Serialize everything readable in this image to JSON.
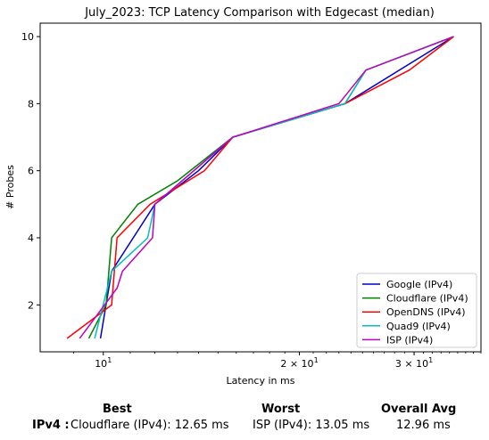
{
  "chart_data": {
    "type": "line",
    "title": "July_2023: TCP Latency Comparison with Edgecast (median)",
    "xlabel": "Latency in ms",
    "ylabel": "# Probes",
    "xscale": "log",
    "xlim": [
      8.0,
      38.0
    ],
    "ylim": [
      0.6,
      10.4
    ],
    "x_ticks": [
      {
        "value": 10,
        "label": "10",
        "exp": "1"
      },
      {
        "value": 20,
        "label": "2 × 10",
        "exp": "1"
      },
      {
        "value": 30,
        "label": "3 × 10",
        "exp": "1"
      }
    ],
    "y_ticks": [
      2,
      4,
      6,
      8,
      10
    ],
    "grid": false,
    "legend_position": "lower-right",
    "series": [
      {
        "name": "Google (IPv4)",
        "color": "#0000cc",
        "x": [
          9.9,
          10.3,
          12.0,
          14.0,
          15.8,
          23.5,
          34.5
        ],
        "y": [
          1,
          3,
          5,
          6,
          7,
          8,
          10
        ]
      },
      {
        "name": "Cloudflare (IPv4)",
        "color": "#008000",
        "x": [
          9.5,
          10.1,
          10.3,
          11.3,
          13.0,
          15.8,
          23.5,
          25.3,
          34.5
        ],
        "y": [
          1,
          2,
          4,
          5,
          5.7,
          7,
          8,
          9,
          10
        ]
      },
      {
        "name": "OpenDNS (IPv4)",
        "color": "#ff0000",
        "x": [
          8.8,
          10.3,
          10.5,
          11.8,
          14.3,
          15.8,
          23.5,
          29.5,
          34.5
        ],
        "y": [
          1,
          2,
          4,
          5,
          6,
          7,
          8,
          9,
          10
        ]
      },
      {
        "name": "Quad9 (IPv4)",
        "color": "#00c0c0",
        "x": [
          9.7,
          10.3,
          11.7,
          12.0,
          15.8,
          23.5,
          25.3,
          34.5
        ],
        "y": [
          1,
          3,
          4,
          5,
          7,
          8,
          9,
          10
        ]
      },
      {
        "name": "ISP (IPv4)",
        "color": "#c000c0",
        "x": [
          9.2,
          10.5,
          10.7,
          11.9,
          12.0,
          15.8,
          23.0,
          25.3,
          34.5
        ],
        "y": [
          1,
          2.5,
          3,
          4,
          5,
          7,
          8,
          9,
          10
        ]
      }
    ]
  },
  "stats": {
    "headers": {
      "best": "Best",
      "worst": "Worst",
      "overall": "Overall Avg"
    },
    "row_label": "IPv4 :",
    "best_value": "Cloudflare (IPv4): 12.65 ms",
    "worst_value": "ISP (IPv4): 13.05 ms",
    "overall_value": "12.96 ms"
  }
}
